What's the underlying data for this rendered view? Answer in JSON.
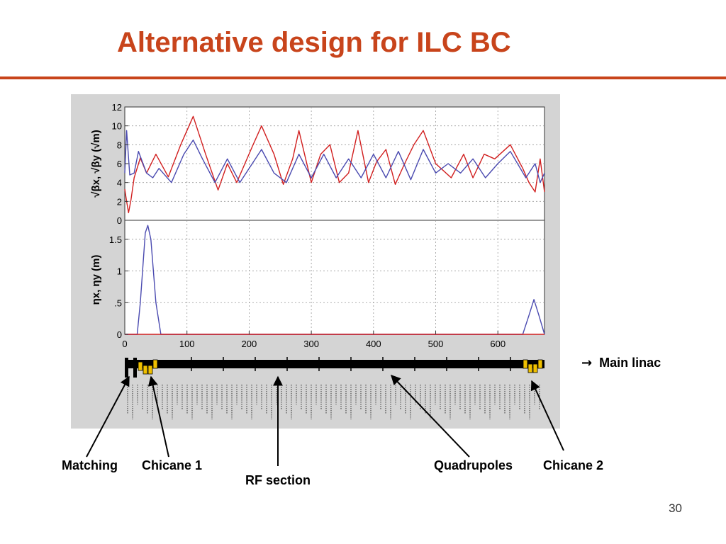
{
  "slide": {
    "title": "Alternative design for ILC BC",
    "page_number": "30"
  },
  "callouts": {
    "main_linac_arrow": "→",
    "main_linac": "Main linac",
    "matching": "Matching",
    "chicane1": "Chicane 1",
    "rf_section": "RF section",
    "quadrupoles": "Quadrupoles",
    "chicane2": "Chicane 2"
  },
  "colors": {
    "title": "#c8441b",
    "series_x": "#d11f1f",
    "series_y": "#4a4ab0",
    "magnet_yellow": "#f0c000",
    "panel_background": "#d4d4d4"
  },
  "chart_data": [
    {
      "type": "line",
      "panel": "beta",
      "ylabel": "√βx, √βy (√m)",
      "xlim": [
        0,
        675
      ],
      "ylim": [
        0,
        12
      ],
      "yticks": [
        0,
        2,
        4,
        6,
        8,
        10,
        12
      ],
      "ytick_labels": [
        "0",
        "2",
        "4",
        "6",
        "8",
        "10",
        "12"
      ],
      "grid": true,
      "series": [
        {
          "color": "#d11f1f",
          "x": [
            0,
            3,
            6,
            10,
            15,
            25,
            35,
            50,
            70,
            90,
            110,
            130,
            150,
            165,
            180,
            205,
            220,
            240,
            255,
            270,
            280,
            300,
            315,
            330,
            345,
            360,
            375,
            392,
            405,
            420,
            435,
            450,
            465,
            480,
            500,
            525,
            545,
            560,
            578,
            595,
            620,
            640,
            650,
            660,
            668,
            675
          ],
          "y": [
            3.3,
            2.0,
            0.8,
            2.2,
            4.5,
            6.6,
            5.0,
            7.0,
            4.6,
            8.0,
            11.0,
            7.0,
            3.2,
            6.0,
            4.0,
            7.8,
            10.0,
            7.0,
            3.8,
            6.5,
            9.5,
            4.0,
            7.0,
            8.0,
            4.0,
            5.0,
            9.5,
            4.0,
            6.2,
            7.5,
            3.8,
            6.0,
            8.0,
            9.5,
            6.0,
            4.5,
            7.0,
            4.5,
            7.0,
            6.5,
            8.0,
            5.5,
            4.0,
            3.0,
            6.5,
            3.0
          ]
        },
        {
          "color": "#4a4ab0",
          "x": [
            0,
            3,
            8,
            15,
            22,
            35,
            45,
            55,
            75,
            95,
            110,
            125,
            145,
            165,
            185,
            205,
            220,
            240,
            260,
            280,
            300,
            320,
            340,
            360,
            380,
            400,
            420,
            440,
            460,
            480,
            500,
            520,
            540,
            560,
            580,
            600,
            620,
            645,
            660,
            668,
            675
          ],
          "y": [
            5.0,
            9.5,
            4.8,
            5.0,
            7.3,
            5.0,
            4.5,
            5.5,
            4.0,
            7.0,
            8.5,
            6.5,
            4.0,
            6.5,
            4.0,
            6.0,
            7.5,
            5.0,
            4.0,
            7.0,
            4.5,
            7.0,
            4.5,
            6.5,
            4.5,
            7.0,
            4.5,
            7.3,
            4.3,
            7.5,
            5.0,
            6.0,
            5.0,
            6.5,
            4.5,
            6.0,
            7.3,
            4.5,
            6.0,
            4.0,
            5.0
          ]
        }
      ]
    },
    {
      "type": "line",
      "panel": "dispersion",
      "ylabel": "ηx, ηy (m)",
      "xlim": [
        0,
        675
      ],
      "ylim": [
        0,
        1.8
      ],
      "yticks": [
        0,
        0.5,
        1,
        1.5
      ],
      "ytick_labels": [
        "0",
        ".5",
        "1",
        "1.5"
      ],
      "xticks": [
        0,
        100,
        200,
        300,
        400,
        500,
        600
      ],
      "xtick_labels": [
        "0",
        "100",
        "200",
        "300",
        "400",
        "500",
        "600"
      ],
      "grid": true,
      "series": [
        {
          "color": "#4a4ab0",
          "x": [
            0,
            20,
            25,
            33,
            37,
            42,
            50,
            58,
            640,
            650,
            658,
            666,
            675
          ],
          "y": [
            0,
            0,
            0.5,
            1.6,
            1.72,
            1.5,
            0.5,
            0,
            0,
            0.3,
            0.55,
            0.3,
            0
          ]
        },
        {
          "color": "#d11f1f",
          "x": [
            0,
            675
          ],
          "y": [
            0,
            0
          ]
        }
      ]
    }
  ]
}
